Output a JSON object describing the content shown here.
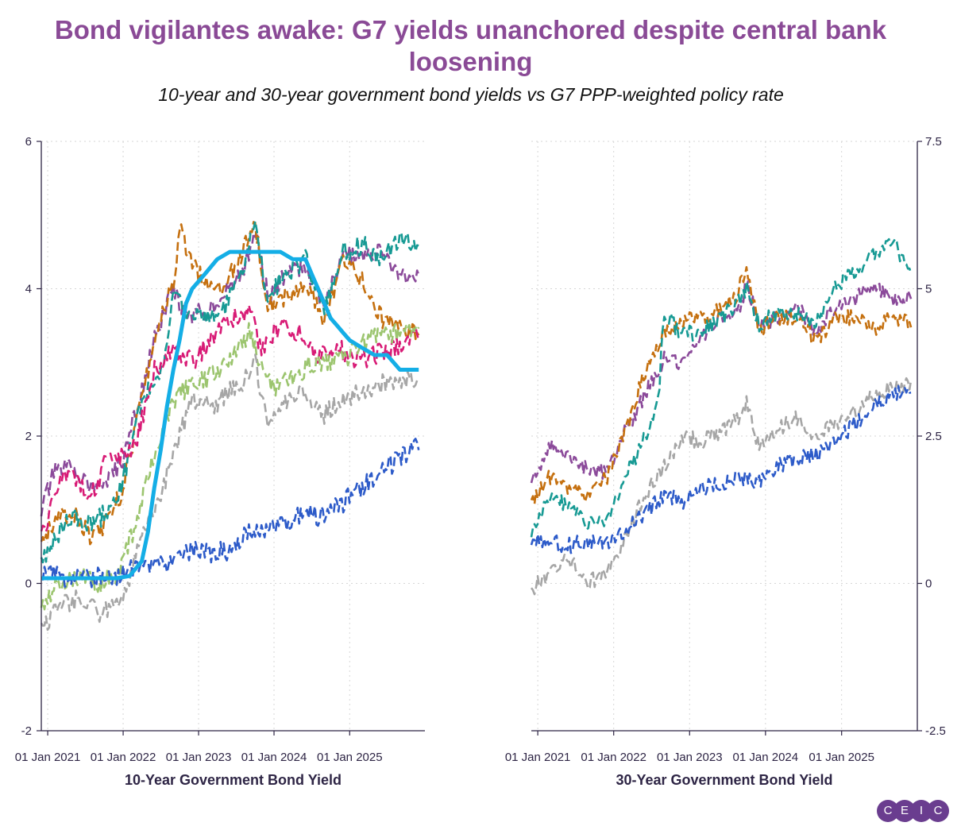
{
  "header": {
    "title": "Bond vigilantes awake: G7 yields unanchored despite central bank loosening",
    "subtitle": "10-year and 30-year government bond yields vs G7 PPP-weighted policy rate"
  },
  "logo": {
    "letters": [
      "C",
      "E",
      "I",
      "C"
    ]
  },
  "colors": {
    "blue_dark": "#2d5bc9",
    "grey": "#a6a6a6",
    "green_light": "#9cc56f",
    "purple": "#8b4a9a",
    "orange": "#c5700f",
    "teal": "#179a94",
    "magenta": "#d81b76",
    "policy": "#14aee6",
    "title": "#8a4a96"
  },
  "chart_data": [
    {
      "type": "line",
      "xlabel": "10-Year Government Bond Yield",
      "ylabel": "",
      "x_tick_labels": [
        "01 Jan 2021",
        "01 Jan 2022",
        "01 Jan 2023",
        "01 Jan 2024",
        "01 Jan 2025"
      ],
      "x_ticks": [
        "2021-01-01",
        "2022-01-01",
        "2023-01-01",
        "2024-01-01",
        "2025-01-01"
      ],
      "xlim": [
        "2020-12-01",
        "2025-12-31"
      ],
      "ylim": [
        -2,
        6
      ],
      "y_ticks": [
        -2,
        0,
        2,
        4,
        6
      ],
      "y_axis_side": "left",
      "grid": true,
      "series": [
        {
          "color_key": "purple",
          "style": "dashed",
          "x": [
            "2020-12",
            "2021-02",
            "2021-05",
            "2021-08",
            "2021-11",
            "2022-01",
            "2022-04",
            "2022-06",
            "2022-09",
            "2022-11",
            "2023-02",
            "2023-05",
            "2023-08",
            "2023-10",
            "2023-12",
            "2024-03",
            "2024-06",
            "2024-09",
            "2024-12",
            "2025-03",
            "2025-06",
            "2025-09",
            "2025-12"
          ],
          "values": [
            1.0,
            1.5,
            1.6,
            1.3,
            1.4,
            1.7,
            2.6,
            3.3,
            4.0,
            3.6,
            3.7,
            3.9,
            4.2,
            4.8,
            3.9,
            4.2,
            4.3,
            3.8,
            4.5,
            4.4,
            4.5,
            4.2,
            4.1
          ]
        },
        {
          "color_key": "orange",
          "style": "dashed",
          "x": [
            "2020-12",
            "2021-02",
            "2021-05",
            "2021-08",
            "2021-11",
            "2022-01",
            "2022-03",
            "2022-06",
            "2022-09",
            "2022-10",
            "2023-01",
            "2023-04",
            "2023-07",
            "2023-10",
            "2023-12",
            "2024-03",
            "2024-06",
            "2024-09",
            "2024-12",
            "2025-03",
            "2025-06",
            "2025-09",
            "2025-12"
          ],
          "values": [
            0.6,
            0.8,
            1.0,
            0.6,
            0.9,
            1.3,
            2.1,
            3.3,
            4.1,
            4.8,
            4.2,
            4.0,
            4.3,
            4.9,
            3.8,
            3.9,
            4.0,
            3.6,
            4.4,
            4.1,
            3.6,
            3.5,
            3.4
          ]
        },
        {
          "color_key": "teal",
          "style": "dashed",
          "x": [
            "2020-12",
            "2021-02",
            "2021-05",
            "2021-08",
            "2021-11",
            "2022-01",
            "2022-04",
            "2022-07",
            "2022-09",
            "2022-11",
            "2023-02",
            "2023-05",
            "2023-08",
            "2023-10",
            "2023-12",
            "2024-03",
            "2024-06",
            "2024-09",
            "2024-12",
            "2025-03",
            "2025-06",
            "2025-09",
            "2025-12"
          ],
          "values": [
            0.3,
            0.6,
            0.9,
            0.8,
            1.0,
            1.4,
            2.5,
            2.8,
            3.9,
            3.7,
            3.6,
            3.7,
            4.2,
            4.9,
            3.9,
            4.2,
            4.4,
            3.7,
            4.5,
            4.6,
            4.4,
            4.7,
            4.6
          ]
        },
        {
          "color_key": "magenta",
          "style": "dashed",
          "x": [
            "2020-12",
            "2021-01",
            "2021-03",
            "2021-06",
            "2021-08",
            "2021-10",
            "2022-01",
            "2022-03",
            "2022-06",
            "2022-09",
            "2022-12",
            "2023-03",
            "2023-06",
            "2023-09",
            "2023-11",
            "2024-02",
            "2024-05",
            "2024-08",
            "2024-11",
            "2025-02",
            "2025-05",
            "2025-08",
            "2025-12"
          ],
          "values": [
            0.7,
            0.8,
            1.5,
            1.4,
            1.2,
            1.6,
            1.7,
            1.9,
            2.9,
            3.2,
            3.0,
            3.3,
            3.6,
            3.7,
            3.2,
            3.5,
            3.4,
            3.1,
            3.2,
            3.0,
            3.1,
            3.2,
            3.4
          ]
        },
        {
          "color_key": "green_light",
          "style": "dashed",
          "x": [
            "2020-12",
            "2021-03",
            "2021-06",
            "2021-09",
            "2021-12",
            "2022-03",
            "2022-06",
            "2022-09",
            "2022-12",
            "2023-03",
            "2023-06",
            "2023-09",
            "2023-11",
            "2024-01",
            "2024-04",
            "2024-07",
            "2024-10",
            "2025-01",
            "2025-04",
            "2025-07",
            "2025-12"
          ],
          "values": [
            -0.3,
            0.0,
            0.1,
            0.0,
            0.1,
            0.8,
            1.8,
            2.5,
            2.7,
            2.8,
            3.0,
            3.4,
            2.9,
            2.6,
            2.8,
            3.0,
            3.0,
            3.1,
            3.3,
            3.4,
            3.4
          ]
        },
        {
          "color_key": "grey",
          "style": "dashed",
          "x": [
            "2020-12",
            "2021-03",
            "2021-06",
            "2021-09",
            "2021-12",
            "2022-02",
            "2022-04",
            "2022-07",
            "2022-10",
            "2022-12",
            "2023-03",
            "2023-06",
            "2023-09",
            "2023-10",
            "2023-12",
            "2024-03",
            "2024-06",
            "2024-09",
            "2024-12",
            "2025-03",
            "2025-06",
            "2025-09",
            "2025-12"
          ],
          "values": [
            -0.6,
            -0.3,
            -0.2,
            -0.4,
            -0.3,
            0.0,
            0.7,
            1.2,
            2.0,
            2.5,
            2.4,
            2.6,
            2.8,
            3.0,
            2.1,
            2.5,
            2.6,
            2.3,
            2.5,
            2.6,
            2.7,
            2.7,
            2.8
          ]
        },
        {
          "color_key": "blue_dark",
          "style": "dashed",
          "x": [
            "2020-12",
            "2021-03",
            "2021-06",
            "2021-09",
            "2021-12",
            "2022-03",
            "2022-06",
            "2022-09",
            "2022-12",
            "2023-03",
            "2023-06",
            "2023-09",
            "2023-12",
            "2024-03",
            "2024-06",
            "2024-09",
            "2024-12",
            "2025-03",
            "2025-06",
            "2025-09",
            "2025-12"
          ],
          "values": [
            0.1,
            0.1,
            0.05,
            0.1,
            0.1,
            0.2,
            0.25,
            0.3,
            0.45,
            0.4,
            0.45,
            0.75,
            0.7,
            0.85,
            0.95,
            0.9,
            1.1,
            1.3,
            1.5,
            1.7,
            1.9
          ]
        },
        {
          "color_key": "policy",
          "style": "solid",
          "x": [
            "2020-12",
            "2021-06",
            "2021-12",
            "2022-02",
            "2022-04",
            "2022-05",
            "2022-06",
            "2022-07",
            "2022-08",
            "2022-09",
            "2022-10",
            "2022-11",
            "2022-12",
            "2023-01",
            "2023-02",
            "2023-04",
            "2023-06",
            "2023-08",
            "2023-10",
            "2023-12",
            "2024-02",
            "2024-04",
            "2024-06",
            "2024-07",
            "2024-08",
            "2024-09",
            "2024-10",
            "2024-11",
            "2024-12",
            "2025-01",
            "2025-03",
            "2025-05",
            "2025-07",
            "2025-09",
            "2025-12"
          ],
          "values": [
            0.07,
            0.07,
            0.07,
            0.1,
            0.3,
            0.7,
            1.3,
            1.8,
            2.4,
            2.9,
            3.3,
            3.8,
            4.0,
            4.1,
            4.2,
            4.4,
            4.5,
            4.5,
            4.5,
            4.5,
            4.5,
            4.4,
            4.4,
            4.2,
            4.0,
            3.8,
            3.6,
            3.5,
            3.4,
            3.3,
            3.2,
            3.1,
            3.1,
            2.9,
            2.9
          ]
        }
      ]
    },
    {
      "type": "line",
      "xlabel": "30-Year Government Bond Yield",
      "ylabel": "",
      "x_tick_labels": [
        "01 Jan 2021",
        "01 Jan 2022",
        "01 Jan 2023",
        "01 Jan 2024",
        "01 Jan 2025"
      ],
      "x_ticks": [
        "2021-01-01",
        "2022-01-01",
        "2023-01-01",
        "2024-01-01",
        "2025-01-01"
      ],
      "xlim": [
        "2020-12-01",
        "2025-12-31"
      ],
      "ylim": [
        -2.5,
        7.5
      ],
      "y_ticks": [
        -2.5,
        0,
        2.5,
        5,
        7.5
      ],
      "y_tick_labels": [
        "-2.5",
        "0",
        "2.5",
        "5",
        "7.5"
      ],
      "y_axis_side": "right",
      "grid": true,
      "series": [
        {
          "color_key": "purple",
          "style": "dashed",
          "x": [
            "2020-12",
            "2021-03",
            "2021-06",
            "2021-09",
            "2021-12",
            "2022-03",
            "2022-06",
            "2022-09",
            "2022-12",
            "2023-03",
            "2023-06",
            "2023-09",
            "2023-10",
            "2023-12",
            "2024-03",
            "2024-06",
            "2024-09",
            "2024-12",
            "2025-03",
            "2025-06",
            "2025-09",
            "2025-12"
          ],
          "values": [
            1.7,
            2.3,
            2.2,
            1.9,
            1.9,
            2.6,
            3.2,
            3.8,
            3.7,
            4.2,
            4.5,
            4.7,
            5.1,
            4.4,
            4.5,
            4.7,
            4.2,
            4.7,
            4.8,
            5.1,
            4.8,
            4.9
          ]
        },
        {
          "color_key": "orange",
          "style": "dashed",
          "x": [
            "2020-12",
            "2021-03",
            "2021-06",
            "2021-09",
            "2021-12",
            "2022-03",
            "2022-06",
            "2022-09",
            "2022-11",
            "2023-02",
            "2023-05",
            "2023-08",
            "2023-10",
            "2023-12",
            "2024-03",
            "2024-06",
            "2024-09",
            "2024-12",
            "2025-03",
            "2025-06",
            "2025-09",
            "2025-12"
          ],
          "values": [
            1.4,
            1.8,
            1.6,
            1.5,
            1.8,
            2.6,
            3.6,
            4.3,
            4.4,
            4.5,
            4.6,
            4.8,
            5.3,
            4.3,
            4.5,
            4.5,
            4.1,
            4.5,
            4.5,
            4.3,
            4.5,
            4.4
          ]
        },
        {
          "color_key": "teal",
          "style": "dashed",
          "x": [
            "2020-12",
            "2021-03",
            "2021-06",
            "2021-09",
            "2021-12",
            "2022-03",
            "2022-06",
            "2022-08",
            "2022-09",
            "2022-12",
            "2023-03",
            "2023-06",
            "2023-09",
            "2023-10",
            "2023-12",
            "2024-03",
            "2024-06",
            "2024-09",
            "2024-12",
            "2025-03",
            "2025-06",
            "2025-09",
            "2025-12"
          ],
          "values": [
            0.9,
            1.5,
            1.3,
            1.0,
            1.1,
            1.8,
            2.5,
            3.0,
            4.6,
            4.2,
            4.3,
            4.5,
            4.8,
            5.0,
            4.4,
            4.6,
            4.6,
            4.4,
            5.0,
            5.3,
            5.6,
            5.8,
            5.3
          ]
        },
        {
          "color_key": "grey",
          "style": "dashed",
          "x": [
            "2020-12",
            "2021-03",
            "2021-06",
            "2021-09",
            "2021-12",
            "2022-03",
            "2022-06",
            "2022-09",
            "2022-12",
            "2023-03",
            "2023-06",
            "2023-09",
            "2023-10",
            "2023-12",
            "2024-03",
            "2024-06",
            "2024-09",
            "2024-12",
            "2025-03",
            "2025-06",
            "2025-09",
            "2025-12"
          ],
          "values": [
            -0.1,
            0.2,
            0.4,
            0.0,
            0.2,
            0.8,
            1.5,
            2.0,
            2.5,
            2.4,
            2.6,
            2.8,
            3.1,
            2.3,
            2.6,
            2.8,
            2.5,
            2.7,
            2.9,
            3.2,
            3.3,
            3.4
          ]
        },
        {
          "color_key": "blue_dark",
          "style": "dashed",
          "x": [
            "2020-12",
            "2021-03",
            "2021-06",
            "2021-09",
            "2021-12",
            "2022-03",
            "2022-06",
            "2022-09",
            "2022-12",
            "2023-03",
            "2023-06",
            "2023-09",
            "2023-12",
            "2024-03",
            "2024-06",
            "2024-09",
            "2024-12",
            "2025-03",
            "2025-06",
            "2025-09",
            "2025-12"
          ],
          "values": [
            0.7,
            0.7,
            0.65,
            0.7,
            0.7,
            0.9,
            1.2,
            1.5,
            1.4,
            1.6,
            1.7,
            1.8,
            1.7,
            2.0,
            2.1,
            2.2,
            2.4,
            2.7,
            3.0,
            3.2,
            3.3
          ]
        }
      ]
    }
  ]
}
